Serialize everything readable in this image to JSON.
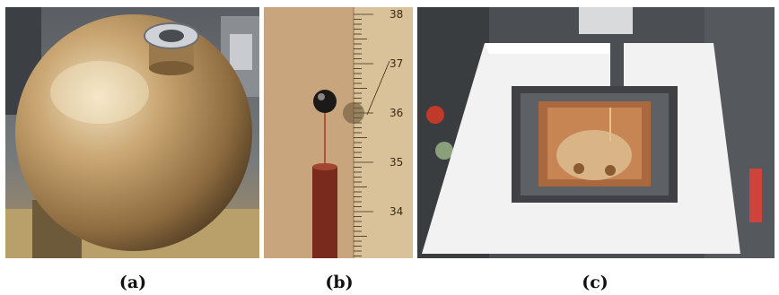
{
  "panels": [
    {
      "id": "a",
      "caption": "(a)",
      "depicts": "copper-sphere-vessel-photo"
    },
    {
      "id": "b",
      "caption": "(b)",
      "depicts": "sensor-bead-on-ruler-photo"
    },
    {
      "id": "c",
      "caption": "(c)",
      "depicts": "sphere-in-shielding-box-photo"
    }
  ],
  "ruler": {
    "marks": [
      "38",
      "37",
      "36",
      "35",
      "34"
    ]
  },
  "colors": {
    "copper": "#b88a55",
    "ruler": "#d9c29a",
    "foam": "#f2f2f2",
    "lead": "#3f4144"
  }
}
